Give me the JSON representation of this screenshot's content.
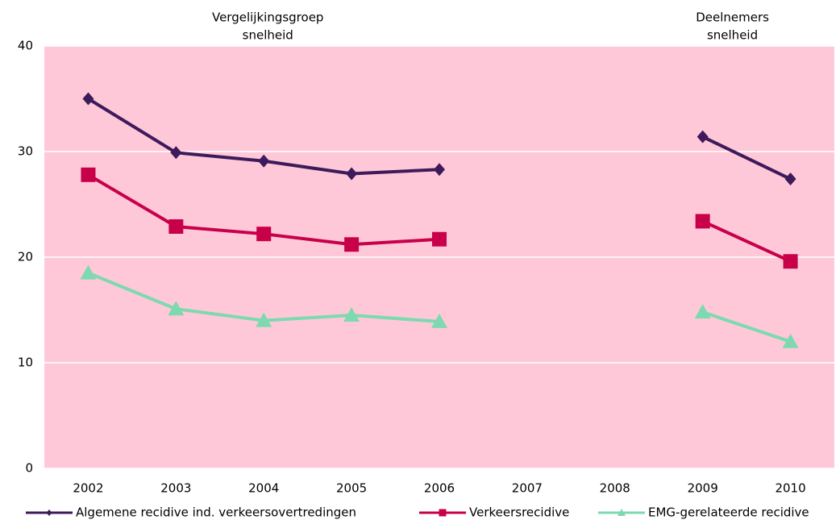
{
  "chart_data": {
    "type": "line",
    "annotations": [
      {
        "lines": [
          "Vergelijkingsgroep",
          "snelheid"
        ],
        "category": "2004"
      },
      {
        "lines": [
          "Deelnemers",
          "snelheid"
        ],
        "category": "2010"
      }
    ],
    "categories": [
      "2002",
      "2003",
      "2004",
      "2005",
      "2006",
      "2007",
      "2008",
      "2009",
      "2010"
    ],
    "series": [
      {
        "name": "Algemene recidive ind. verkeersovertredingen",
        "color": "#3d1a5c",
        "marker": "diamond",
        "values": [
          35,
          29.9,
          29.1,
          27.9,
          28.3,
          null,
          null,
          31.4,
          27.4
        ]
      },
      {
        "name": "Verkeersrecidive",
        "color": "#c8004a",
        "marker": "square",
        "values": [
          27.8,
          22.9,
          22.2,
          21.2,
          21.7,
          null,
          null,
          23.4,
          19.6
        ]
      },
      {
        "name": "EMG-gerelateerde recidive",
        "color": "#7dd9b0",
        "marker": "triangle",
        "values": [
          18.5,
          15.1,
          14.0,
          14.5,
          13.9,
          null,
          null,
          14.8,
          12.0
        ]
      }
    ],
    "ylim": [
      0,
      40
    ],
    "yticks": [
      0,
      10,
      20,
      30,
      40
    ],
    "grid": true,
    "background": "#ffc8d8",
    "legend": "bottom"
  }
}
